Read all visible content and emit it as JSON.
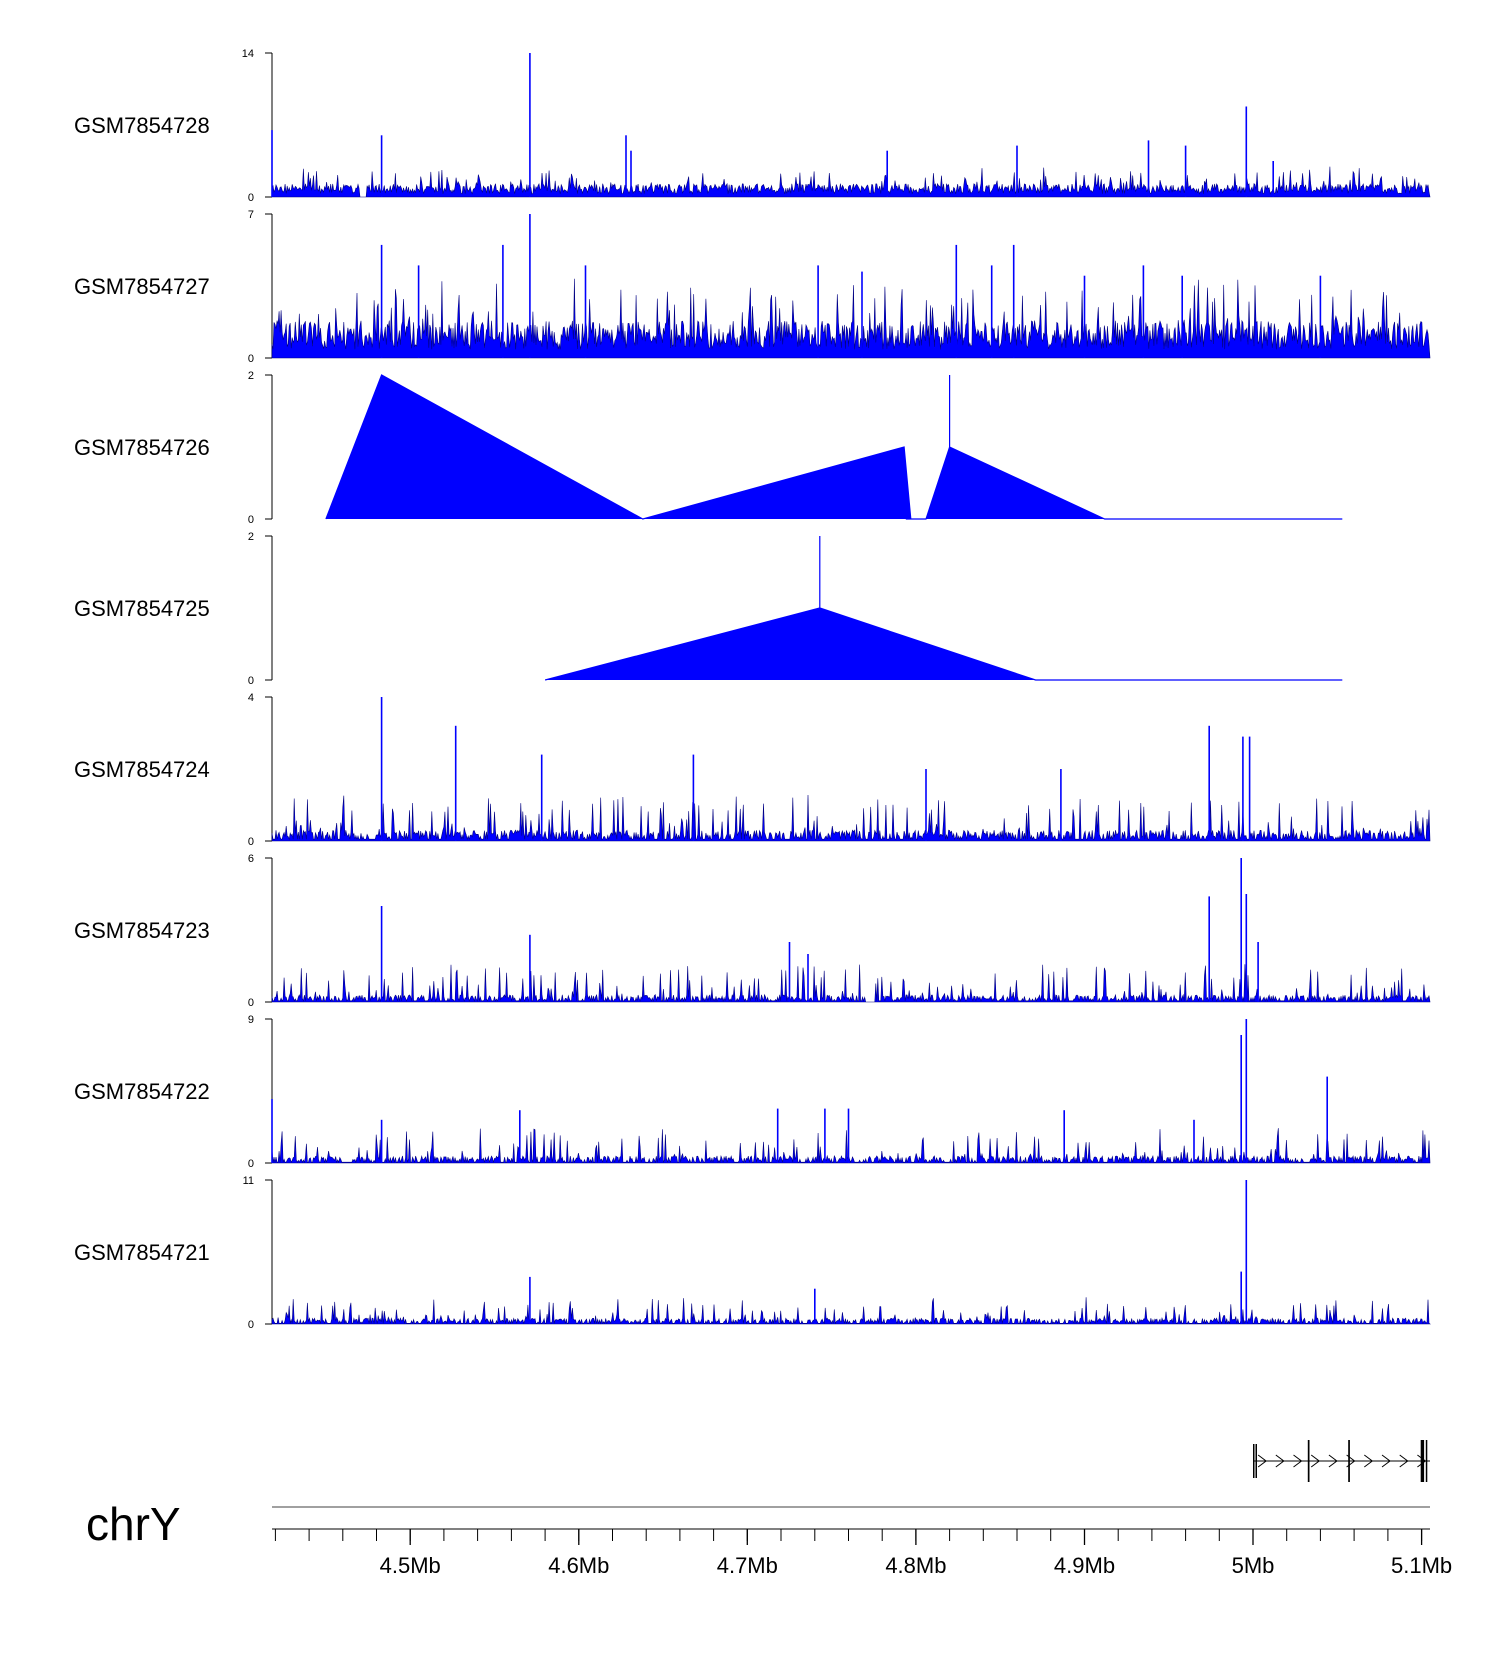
{
  "chart_data": {
    "type": "area",
    "title": "",
    "chromosome": "chrY",
    "x_unit": "Mb",
    "xlim": [
      4.418,
      5.105
    ],
    "x_ticks": [
      {
        "value": 4.5,
        "label": "4.5Mb"
      },
      {
        "value": 4.6,
        "label": "4.6Mb"
      },
      {
        "value": 4.7,
        "label": "4.7Mb"
      },
      {
        "value": 4.8,
        "label": "4.8Mb"
      },
      {
        "value": 4.9,
        "label": "4.9Mb"
      },
      {
        "value": 5.0,
        "label": "5Mb"
      },
      {
        "value": 5.1,
        "label": "5.1Mb"
      }
    ],
    "minor_tick_step": 0.02,
    "tracks": [
      {
        "name": "GSM7854728",
        "ymin": 0,
        "ymax": 14,
        "ymin_label": "0",
        "ymax_label": "14",
        "mode": "dense",
        "seed": 28,
        "baseline": 1.0,
        "spread": 1.8,
        "peaks": [
          [
            4.418,
            6.5
          ],
          [
            4.483,
            6.0
          ],
          [
            4.571,
            14.0
          ],
          [
            4.628,
            6.0
          ],
          [
            4.631,
            4.5
          ],
          [
            4.783,
            4.5
          ],
          [
            4.86,
            5.0
          ],
          [
            4.938,
            5.5
          ],
          [
            4.96,
            5.0
          ],
          [
            4.996,
            8.8
          ],
          [
            5.012,
            3.5
          ]
        ],
        "gaps": [
          [
            4.47,
            4.474
          ]
        ]
      },
      {
        "name": "GSM7854727",
        "ymin": 0,
        "ymax": 7,
        "ymin_label": "0",
        "ymax_label": "7",
        "mode": "dense",
        "seed": 27,
        "baseline": 1.4,
        "spread": 2.3,
        "peaks": [
          [
            4.483,
            5.5
          ],
          [
            4.505,
            4.5
          ],
          [
            4.555,
            5.5
          ],
          [
            4.571,
            7.0
          ],
          [
            4.604,
            4.5
          ],
          [
            4.742,
            4.5
          ],
          [
            4.768,
            4.2
          ],
          [
            4.824,
            5.5
          ],
          [
            4.845,
            4.5
          ],
          [
            4.858,
            5.5
          ],
          [
            4.9,
            4.0
          ],
          [
            4.935,
            4.5
          ],
          [
            4.958,
            4.0
          ],
          [
            5.04,
            4.0
          ]
        ],
        "gaps": []
      },
      {
        "name": "GSM7854726",
        "ymin": 0,
        "ymax": 2,
        "ymin_label": "0",
        "ymax_label": "2",
        "mode": "polygon",
        "points": [
          [
            4.45,
            0
          ],
          [
            4.483,
            2.0
          ],
          [
            4.638,
            0
          ],
          [
            4.793,
            1.0
          ],
          [
            4.797,
            0
          ],
          [
            4.794,
            0
          ],
          [
            4.806,
            0
          ],
          [
            4.82,
            1.0
          ],
          [
            4.82,
            2.0
          ],
          [
            4.82,
            1.0
          ],
          [
            4.912,
            0
          ],
          [
            5.053,
            0
          ]
        ]
      },
      {
        "name": "GSM7854725",
        "ymin": 0,
        "ymax": 2,
        "ymin_label": "0",
        "ymax_label": "2",
        "mode": "polygon",
        "points": [
          [
            4.58,
            0
          ],
          [
            4.743,
            1.0
          ],
          [
            4.743,
            2.0
          ],
          [
            4.743,
            1.0
          ],
          [
            4.871,
            0
          ],
          [
            5.053,
            0
          ]
        ]
      },
      {
        "name": "GSM7854724",
        "ymin": 0,
        "ymax": 4,
        "ymin_label": "0",
        "ymax_label": "4",
        "mode": "sparse",
        "seed": 24,
        "baseline": 0.2,
        "spread": 1.0,
        "peaks": [
          [
            4.483,
            4.0
          ],
          [
            4.527,
            3.2
          ],
          [
            4.578,
            2.4
          ],
          [
            4.668,
            2.4
          ],
          [
            4.806,
            2.0
          ],
          [
            4.886,
            2.0
          ],
          [
            4.974,
            3.2
          ],
          [
            4.994,
            2.9
          ],
          [
            4.998,
            2.9
          ]
        ],
        "gaps": []
      },
      {
        "name": "GSM7854723",
        "ymin": 0,
        "ymax": 6,
        "ymin_label": "0",
        "ymax_label": "6",
        "mode": "sparse",
        "seed": 23,
        "baseline": 0.2,
        "spread": 1.3,
        "peaks": [
          [
            4.483,
            4.0
          ],
          [
            4.571,
            2.8
          ],
          [
            4.725,
            2.5
          ],
          [
            4.736,
            2.0
          ],
          [
            4.974,
            4.4
          ],
          [
            4.993,
            6.0
          ],
          [
            4.996,
            4.5
          ],
          [
            5.003,
            2.5
          ]
        ],
        "gaps": [
          [
            4.77,
            4.776
          ]
        ]
      },
      {
        "name": "GSM7854722",
        "ymin": 0,
        "ymax": 9,
        "ymin_label": "0",
        "ymax_label": "9",
        "mode": "sparse",
        "seed": 22,
        "baseline": 0.3,
        "spread": 1.8,
        "peaks": [
          [
            4.418,
            4.0
          ],
          [
            4.483,
            2.7
          ],
          [
            4.565,
            3.3
          ],
          [
            4.718,
            3.4
          ],
          [
            4.746,
            3.4
          ],
          [
            4.76,
            3.4
          ],
          [
            4.888,
            3.3
          ],
          [
            4.965,
            2.7
          ],
          [
            4.993,
            8.0
          ],
          [
            4.996,
            9.0
          ],
          [
            5.044,
            5.4
          ]
        ],
        "gaps": []
      },
      {
        "name": "GSM7854721",
        "ymin": 0,
        "ymax": 11,
        "ymin_label": "0",
        "ymax_label": "11",
        "mode": "sparse",
        "seed": 21,
        "baseline": 0.3,
        "spread": 1.6,
        "peaks": [
          [
            4.571,
            3.6
          ],
          [
            4.74,
            2.7
          ],
          [
            4.993,
            4.0
          ],
          [
            4.996,
            11.0
          ]
        ],
        "gaps": []
      }
    ],
    "gene_model": {
      "strand": "+",
      "start": 5.0,
      "end": 5.105,
      "exons": [
        [
          5.0,
          5.0008,
          "thin"
        ],
        [
          5.0015,
          5.0022,
          "thin"
        ],
        [
          5.0325,
          5.0335,
          "thick"
        ],
        [
          5.0565,
          5.0575,
          "thick"
        ],
        [
          5.0995,
          5.1015,
          "thick"
        ],
        [
          5.1025,
          5.103,
          "thick"
        ]
      ]
    }
  },
  "colors": {
    "signal": "#0000ff",
    "signal_dark": "#000080",
    "axis": "#000000",
    "ideogram": "#808080",
    "gene": "#000000"
  }
}
